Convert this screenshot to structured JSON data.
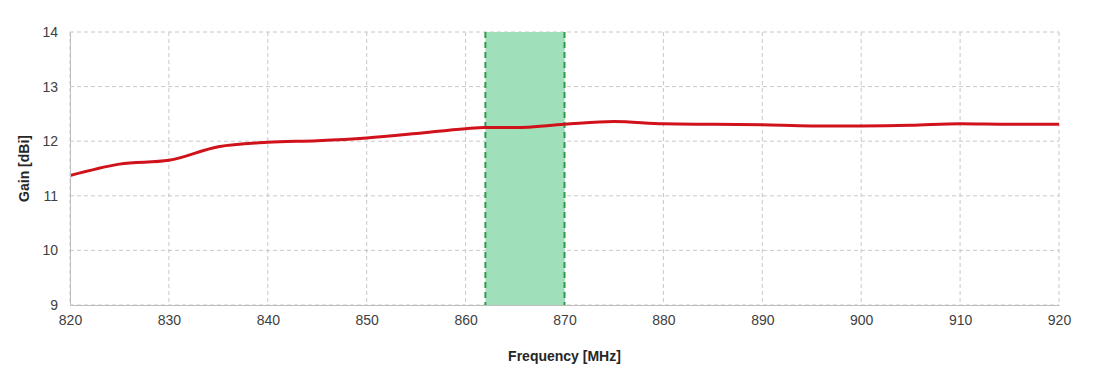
{
  "chart_data": {
    "type": "line",
    "x_label": "Frequency [MHz]",
    "y_label": "Gain [dBi]",
    "x": [
      820,
      825,
      830,
      835,
      840,
      845,
      850,
      855,
      860,
      862,
      865,
      870,
      875,
      880,
      885,
      890,
      895,
      900,
      905,
      910,
      915,
      920
    ],
    "values": [
      11.37,
      11.58,
      11.65,
      11.9,
      11.98,
      12.01,
      12.06,
      12.14,
      12.23,
      12.25,
      12.25,
      12.31,
      12.36,
      12.32,
      12.31,
      12.3,
      12.28,
      12.28,
      12.29,
      12.32,
      12.31,
      12.31
    ],
    "color": "#d0121b",
    "highlight": [
      862,
      870
    ],
    "xlim": [
      820,
      920
    ],
    "xticks": [
      820,
      830,
      840,
      850,
      860,
      870,
      880,
      890,
      900,
      910,
      920
    ],
    "ylim": [
      9,
      14
    ],
    "yticks": [
      9,
      10,
      11,
      12,
      13,
      14
    ],
    "grid": true
  }
}
